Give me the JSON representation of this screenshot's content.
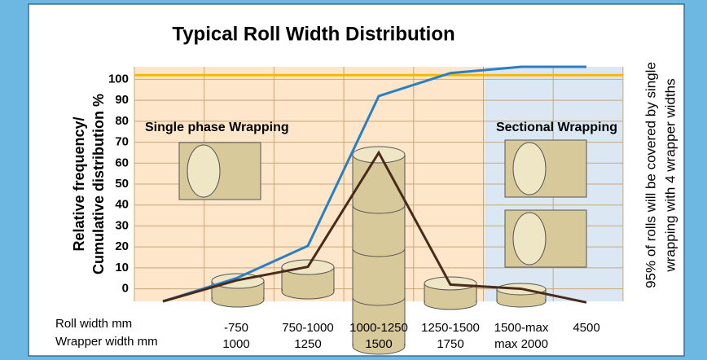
{
  "chart_data": {
    "type": "line",
    "title": "Typical Roll Width Distribution",
    "y_label": [
      "Relative frequency/",
      "Cumulative distribution %"
    ],
    "x_row_labels": [
      "Roll width mm",
      "Wrapper width mm"
    ],
    "categories": [
      null,
      "-750",
      "750-1000",
      "1000-1250",
      "1250-1500",
      "1500-max",
      "4500"
    ],
    "wrapper_widths": [
      null,
      "1000",
      "1250",
      "1500",
      "1750",
      "max 2000",
      null
    ],
    "series": [
      {
        "color": "#2a7fc4",
        "values": [
          -6,
          5,
          20.5,
          92,
          103,
          106,
          106
        ]
      },
      {
        "color": "#4a2a1a",
        "values": [
          -6,
          4,
          10.5,
          65,
          2,
          0,
          -6.5
        ]
      }
    ],
    "reference_line": {
      "value": 102,
      "color": "#f5b800"
    },
    "annotations": [
      "Single phase Wrapping",
      "Sectional Wrapping"
    ],
    "side_note": [
      "95% of rolls will be covered by single",
      "wrapping with 4 wrapper widths"
    ],
    "ylim": [
      -6,
      106
    ],
    "yticks": [
      0,
      10,
      20,
      30,
      40,
      50,
      60,
      70,
      80,
      90,
      100
    ],
    "grid": true
  }
}
